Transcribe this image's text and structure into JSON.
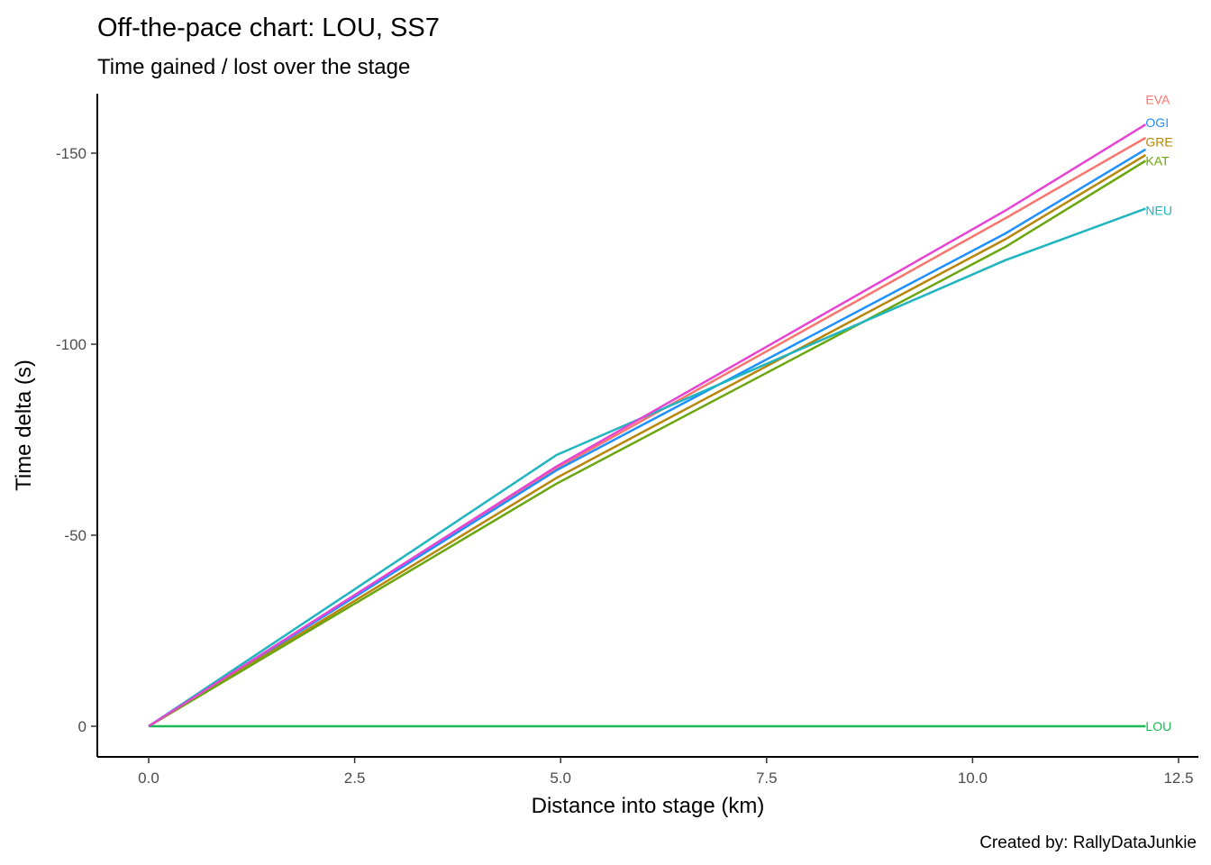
{
  "chart_data": {
    "type": "line",
    "title": "Off-the-pace chart: LOU, SS7",
    "subtitle": "Time gained / lost over the stage",
    "xlabel": "Distance into stage (km)",
    "ylabel": "Time delta (s)",
    "caption": "Created by: RallyDataJunkie",
    "xlim": [
      -0.6,
      12.7
    ],
    "ylim": [
      8,
      -165
    ],
    "y_reversed": true,
    "grid": false,
    "legend": "direct labels at line ends",
    "x_ticks": [
      0,
      2.5,
      5,
      7.5,
      10,
      12.5
    ],
    "x_tick_labels": [
      "0.0",
      "2.5",
      "5.0",
      "7.5",
      "10.0",
      "12.5"
    ],
    "y_ticks": [
      0,
      -50,
      -100,
      -150
    ],
    "y_tick_labels": [
      "0",
      "-50",
      "-100",
      "-150"
    ],
    "x": [
      0,
      4.95,
      10.4,
      12.1
    ],
    "series": [
      {
        "name": "EVA",
        "color": "#F8766D",
        "values": [
          0,
          -67.5,
          -133,
          -154
        ],
        "label_y": -164
      },
      {
        "name": "OGI",
        "color": "#1E90FF",
        "values": [
          0,
          -67,
          -129,
          -151
        ],
        "label_y": -158
      },
      {
        "name": "GRE",
        "color": "#B8860B",
        "values": [
          0,
          -65,
          -127.5,
          -149.5
        ],
        "label_y": -153
      },
      {
        "name": "KAT",
        "color": "#6AA70E",
        "values": [
          0,
          -63.5,
          -125.5,
          -148
        ],
        "label_y": -148
      },
      {
        "name": "NEU",
        "color": "#1FB5BF",
        "values": [
          0,
          -71,
          -122,
          -135.5
        ],
        "label_y": -135
      },
      {
        "name": "LOU",
        "color": "#1DB954",
        "values": [
          0,
          0,
          0,
          0
        ],
        "label_y": 0
      },
      {
        "name": "",
        "color": "#E744D4",
        "values": [
          0,
          -68,
          -135,
          -157.5
        ],
        "label_y": null
      }
    ]
  }
}
